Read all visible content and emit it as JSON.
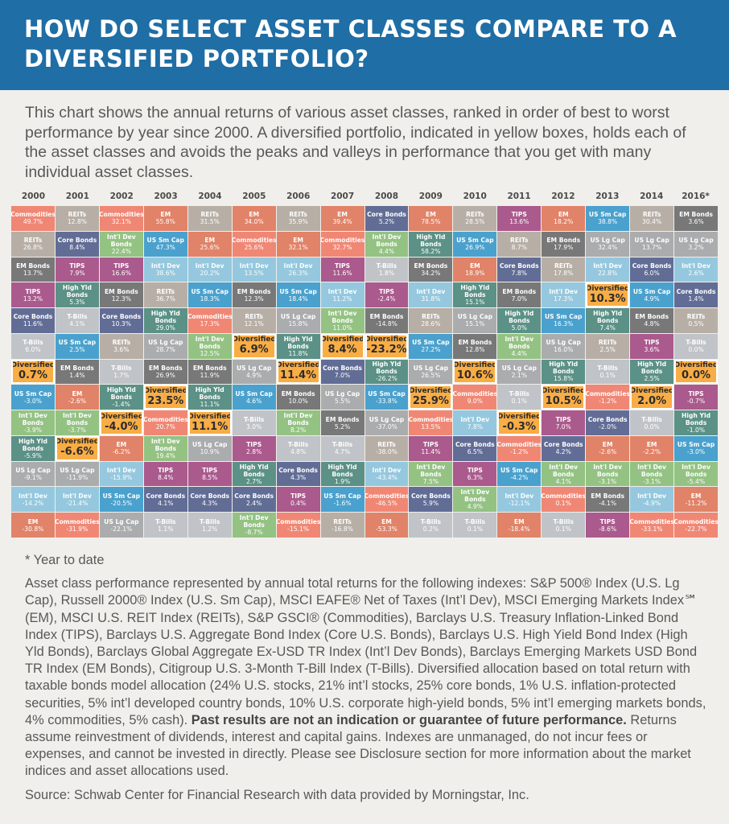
{
  "title": "HOW DO SELECT ASSET CLASSES COMPARE TO A DIVERSIFIED PORTFOLIO?",
  "intro": "This chart shows the annual returns of various asset classes, ranked in order of best to worst performance by year since 2000. A diversified portfolio, indicated in yellow boxes, holds each of the asset classes and avoids the peaks and valleys in performance that you get with many individual asset classes.",
  "colors": {
    "Commodities": "#f07f6a",
    "REITs": "#b3aaa1",
    "EM": "#e07a5d",
    "Core Bonds": "#56638f",
    "Int'l Dev Bonds": "#8dbf7b",
    "High Yld Bonds": "#4f8a7e",
    "US Sm Cap": "#3d9bcb",
    "US Lg Cap": "#a6a7a9",
    "Int'l Dev": "#8ec5dd",
    "EM Bonds": "#6e6e70",
    "TIPS": "#a54e86",
    "T-Bills": "#bdc1c6",
    "Diversified": "#f9ad45",
    "header": "#1f6ea5"
  },
  "chart_data": {
    "type": "table",
    "title": "",
    "note": "ranked best to worst per year; values are annual total returns in %",
    "years": [
      "2000",
      "2001",
      "2002",
      "2003",
      "2004",
      "2005",
      "2006",
      "2007",
      "2008",
      "2009",
      "2010",
      "2011",
      "2012",
      "2013",
      "2014",
      "2016*"
    ],
    "columns": [
      [
        [
          "Commodities",
          "49.7%"
        ],
        [
          "REITs",
          "26.8%"
        ],
        [
          "EM Bonds",
          "13.7%"
        ],
        [
          "TIPS",
          "13.2%"
        ],
        [
          "Core Bonds",
          "11.6%"
        ],
        [
          "T-Bills",
          "6.0%"
        ],
        [
          "Diversified",
          "0.7%"
        ],
        [
          "US Sm Cap",
          "-3.0%"
        ],
        [
          "Int'l Dev Bonds",
          "-3.9%"
        ],
        [
          "High Yld Bonds",
          "-5.9%"
        ],
        [
          "US Lg Cap",
          "-9.1%"
        ],
        [
          "Int'l Dev",
          "-14.2%"
        ],
        [
          "EM",
          "-30.8%"
        ]
      ],
      [
        [
          "REITs",
          "12.8%"
        ],
        [
          "Core Bonds",
          "8.4%"
        ],
        [
          "TIPS",
          "7.9%"
        ],
        [
          "High Yld Bonds",
          "5.3%"
        ],
        [
          "T-Bills",
          "4.1%"
        ],
        [
          "US Sm Cap",
          "2.5%"
        ],
        [
          "EM Bonds",
          "1.4%"
        ],
        [
          "EM",
          "-2.6%"
        ],
        [
          "Int'l Dev Bonds",
          "-3.7%"
        ],
        [
          "Diversified",
          "-6.6%"
        ],
        [
          "US Lg Cap",
          "-11.9%"
        ],
        [
          "Int'l Dev",
          "-21.4%"
        ],
        [
          "Commodities",
          "-31.9%"
        ]
      ],
      [
        [
          "Commodities",
          "32.1%"
        ],
        [
          "Int'l Dev Bonds",
          "22.4%"
        ],
        [
          "TIPS",
          "16.6%"
        ],
        [
          "EM Bonds",
          "12.3%"
        ],
        [
          "Core Bonds",
          "10.3%"
        ],
        [
          "REITs",
          "3.6%"
        ],
        [
          "T-Bills",
          "1.7%"
        ],
        [
          "High Yld Bonds",
          "-1.4%"
        ],
        [
          "Diversified",
          "-4.0%"
        ],
        [
          "EM",
          "-6.2%"
        ],
        [
          "Int'l Dev",
          "-15.9%"
        ],
        [
          "US Sm Cap",
          "-20.5%"
        ],
        [
          "US Lg Cap",
          "-22.1%"
        ]
      ],
      [
        [
          "EM",
          "55.8%"
        ],
        [
          "US Sm Cap",
          "47.3%"
        ],
        [
          "Int'l Dev",
          "38.6%"
        ],
        [
          "REITs",
          "36.7%"
        ],
        [
          "High Yld Bonds",
          "29.0%"
        ],
        [
          "US Lg Cap",
          "28.7%"
        ],
        [
          "EM Bonds",
          "26.9%"
        ],
        [
          "Diversified",
          "23.5%"
        ],
        [
          "Commodities",
          "20.7%"
        ],
        [
          "Int'l Dev Bonds",
          "19.4%"
        ],
        [
          "TIPS",
          "8.4%"
        ],
        [
          "Core Bonds",
          "4.1%"
        ],
        [
          "T-Bills",
          "1.1%"
        ]
      ],
      [
        [
          "REITs",
          "31.5%"
        ],
        [
          "EM",
          "25.6%"
        ],
        [
          "Int'l Dev",
          "20.2%"
        ],
        [
          "US Sm Cap",
          "18.3%"
        ],
        [
          "Commodities",
          "17.3%"
        ],
        [
          "Int'l Dev Bonds",
          "12.5%"
        ],
        [
          "EM Bonds",
          "11.9%"
        ],
        [
          "High Yld Bonds",
          "11.1%"
        ],
        [
          "Diversified",
          "11.1%"
        ],
        [
          "US Lg Cap",
          "10.9%"
        ],
        [
          "TIPS",
          "8.5%"
        ],
        [
          "Core Bonds",
          "4.3%"
        ],
        [
          "T-Bills",
          "1.2%"
        ]
      ],
      [
        [
          "EM",
          "34.0%"
        ],
        [
          "Commodities",
          "25.6%"
        ],
        [
          "Int'l Dev",
          "13.5%"
        ],
        [
          "EM Bonds",
          "12.3%"
        ],
        [
          "REITs",
          "12.1%"
        ],
        [
          "Diversified",
          "6.9%"
        ],
        [
          "US Lg Cap",
          "4.9%"
        ],
        [
          "US Sm Cap",
          "4.6%"
        ],
        [
          "T-Bills",
          "3.0%"
        ],
        [
          "TIPS",
          "2.8%"
        ],
        [
          "High Yld Bonds",
          "2.7%"
        ],
        [
          "Core Bonds",
          "2.4%"
        ],
        [
          "Int'l Dev Bonds",
          "-8.7%"
        ]
      ],
      [
        [
          "REITs",
          "35.9%"
        ],
        [
          "EM",
          "32.1%"
        ],
        [
          "Int'l Dev",
          "26.3%"
        ],
        [
          "US Sm Cap",
          "18.4%"
        ],
        [
          "US Lg Cap",
          "15.8%"
        ],
        [
          "High Yld Bonds",
          "11.8%"
        ],
        [
          "Diversified",
          "11.4%"
        ],
        [
          "EM Bonds",
          "10.0%"
        ],
        [
          "Int'l Dev Bonds",
          "8.2%"
        ],
        [
          "T-Bills",
          "4.8%"
        ],
        [
          "Core Bonds",
          "4.3%"
        ],
        [
          "TIPS",
          "0.4%"
        ],
        [
          "Commodities",
          "-15.1%"
        ]
      ],
      [
        [
          "EM",
          "39.4%"
        ],
        [
          "Commodities",
          "32.7%"
        ],
        [
          "TIPS",
          "11.6%"
        ],
        [
          "Int'l Dev",
          "11.2%"
        ],
        [
          "Int'l Dev Bonds",
          "11.0%"
        ],
        [
          "Diversified",
          "8.4%"
        ],
        [
          "Core Bonds",
          "7.0%"
        ],
        [
          "US Lg Cap",
          "5.5%"
        ],
        [
          "EM Bonds",
          "5.2%"
        ],
        [
          "T-Bills",
          "4.7%"
        ],
        [
          "High Yld Bonds",
          "1.9%"
        ],
        [
          "US Sm Cap",
          "-1.6%"
        ],
        [
          "REITs",
          "-16.8%"
        ]
      ],
      [
        [
          "Core Bonds",
          "5.2%"
        ],
        [
          "Int'l Dev Bonds",
          "4.4%"
        ],
        [
          "T-Bills",
          "1.8%"
        ],
        [
          "TIPS",
          "-2.4%"
        ],
        [
          "EM Bonds",
          "-14.8%"
        ],
        [
          "Diversified",
          "-23.2%"
        ],
        [
          "High Yld Bonds",
          "-26.2%"
        ],
        [
          "US Sm Cap",
          "-33.8%"
        ],
        [
          "US Lg Cap",
          "-37.0%"
        ],
        [
          "REITs",
          "-38.0%"
        ],
        [
          "Int'l Dev",
          "-43.4%"
        ],
        [
          "Commodities",
          "-46.5%"
        ],
        [
          "EM",
          "-53.3%"
        ]
      ],
      [
        [
          "EM",
          "78.5%"
        ],
        [
          "High Yld Bonds",
          "58.2%"
        ],
        [
          "EM Bonds",
          "34.2%"
        ],
        [
          "Int'l Dev",
          "31.8%"
        ],
        [
          "REITs",
          "28.6%"
        ],
        [
          "US Sm Cap",
          "27.2%"
        ],
        [
          "US Lg Cap",
          "26.5%"
        ],
        [
          "Diversified",
          "25.9%"
        ],
        [
          "Commodities",
          "13.5%"
        ],
        [
          "TIPS",
          "11.4%"
        ],
        [
          "Int'l Dev Bonds",
          "7.5%"
        ],
        [
          "Core Bonds",
          "5.9%"
        ],
        [
          "T-Bills",
          "0.2%"
        ]
      ],
      [
        [
          "REITs",
          "28.5%"
        ],
        [
          "US Sm Cap",
          "26.9%"
        ],
        [
          "EM",
          "18.9%"
        ],
        [
          "High Yld Bonds",
          "15.1%"
        ],
        [
          "US Lg Cap",
          "15.1%"
        ],
        [
          "EM Bonds",
          "12.8%"
        ],
        [
          "Diversified",
          "10.6%"
        ],
        [
          "Commodities",
          "9.0%"
        ],
        [
          "Int'l Dev",
          "7.8%"
        ],
        [
          "Core Bonds",
          "6.5%"
        ],
        [
          "TIPS",
          "6.3%"
        ],
        [
          "Int'l Dev Bonds",
          "4.9%"
        ],
        [
          "T-Bills",
          "0.1%"
        ]
      ],
      [
        [
          "TIPS",
          "13.6%"
        ],
        [
          "REITs",
          "8.7%"
        ],
        [
          "Core Bonds",
          "7.8%"
        ],
        [
          "EM Bonds",
          "7.0%"
        ],
        [
          "High Yld Bonds",
          "5.0%"
        ],
        [
          "Int'l Dev Bonds",
          "4.4%"
        ],
        [
          "US Lg Cap",
          "2.1%"
        ],
        [
          "T-Bills",
          "0.1%"
        ],
        [
          "Diversified",
          "-0.3%"
        ],
        [
          "Commodities",
          "-1.2%"
        ],
        [
          "US Sm Cap",
          "-4.2%"
        ],
        [
          "Int'l Dev",
          "-12.1%"
        ],
        [
          "EM",
          "-18.4%"
        ]
      ],
      [
        [
          "EM",
          "18.2%"
        ],
        [
          "EM Bonds",
          "17.9%"
        ],
        [
          "REITs",
          "17.8%"
        ],
        [
          "Int'l Dev",
          "17.3%"
        ],
        [
          "US Sm Cap",
          "16.3%"
        ],
        [
          "US Lg Cap",
          "16.0%"
        ],
        [
          "High Yld Bonds",
          "15.8%"
        ],
        [
          "Diversified",
          "10.5%"
        ],
        [
          "TIPS",
          "7.0%"
        ],
        [
          "Core Bonds",
          "4.2%"
        ],
        [
          "Int'l Dev Bonds",
          "4.1%"
        ],
        [
          "Commodities",
          "0.1%"
        ],
        [
          "T-Bills",
          "0.1%"
        ]
      ],
      [
        [
          "US Sm Cap",
          "38.8%"
        ],
        [
          "US Lg Cap",
          "32.4%"
        ],
        [
          "Int'l Dev",
          "22.8%"
        ],
        [
          "Diversified",
          "10.3%"
        ],
        [
          "High Yld Bonds",
          "7.4%"
        ],
        [
          "REITs",
          "2.5%"
        ],
        [
          "T-Bills",
          "0.1%"
        ],
        [
          "Commodities",
          "-1.2%"
        ],
        [
          "Core Bonds",
          "-2.0%"
        ],
        [
          "EM",
          "-2.6%"
        ],
        [
          "Int'l Dev Bonds",
          "-3.1%"
        ],
        [
          "EM Bonds",
          "-4.1%"
        ],
        [
          "TIPS",
          "-8.6%"
        ]
      ],
      [
        [
          "REITs",
          "30.4%"
        ],
        [
          "US Lg Cap",
          "13.7%"
        ],
        [
          "Core Bonds",
          "6.0%"
        ],
        [
          "US Sm Cap",
          "4.9%"
        ],
        [
          "EM Bonds",
          "4.8%"
        ],
        [
          "TIPS",
          "3.6%"
        ],
        [
          "High Yld Bonds",
          "2.5%"
        ],
        [
          "Diversified",
          "2.0%"
        ],
        [
          "T-Bills",
          "0.0%"
        ],
        [
          "EM",
          "-2.2%"
        ],
        [
          "Int'l Dev Bonds",
          "-3.1%"
        ],
        [
          "Int'l Dev",
          "-4.9%"
        ],
        [
          "Commodities",
          "-33.1%"
        ]
      ],
      [
        [
          "EM Bonds",
          "3.6%"
        ],
        [
          "US Lg Cap",
          "3.2%"
        ],
        [
          "Int'l Dev",
          "2.6%"
        ],
        [
          "Core Bonds",
          "1.4%"
        ],
        [
          "REITs",
          "0.5%"
        ],
        [
          "T-Bills",
          "0.0%"
        ],
        [
          "Diversified",
          "0.0%"
        ],
        [
          "TIPS",
          "-0.7%"
        ],
        [
          "High Yld Bonds",
          "-1.0%"
        ],
        [
          "US Sm Cap",
          "-3.0%"
        ],
        [
          "Int'l Dev Bonds",
          "-5.4%"
        ],
        [
          "EM",
          "-11.2%"
        ],
        [
          "Commodities",
          "-22.7%"
        ]
      ]
    ]
  },
  "footnotes": {
    "ytd": "* Year to date",
    "body": "Asset class performance represented by annual total returns for the following indexes: S&P 500® Index (U.S. Lg Cap), Russell 2000® Index (U.S. Sm Cap), MSCI EAFE® Net of Taxes (Int’l Dev), MSCI Emerging Markets Index℠ (EM), MSCI U.S. REIT Index (REITs), S&P GSCI® (Commodities), Barclays U.S. Treasury Inflation-Linked Bond Index (TIPS), Barclays U.S. Aggregate Bond Index (Core U.S. Bonds), Barclays U.S. High Yield Bond Index (High Yld Bonds), Barclays Global Aggregate Ex-USD TR Index (Int’l Dev Bonds), Barclays Emerging Markets USD Bond TR Index (EM Bonds), Citigroup U.S. 3-Month T-Bill Index (T-Bills). Diversified allocation based on total return with taxable bonds model allocation (24% U.S. stocks, 21% int’l stocks, 25% core bonds, 1% U.S. inflation-protected securities, 5% int’l developed country bonds, 10% U.S. corporate high-yield bonds, 5% int’l emerging markets bonds, 4% commodities, 5% cash).",
    "bold": "Past results are not an indication or guarantee of future performance.",
    "after": "Returns assume reinvestment of dividends, interest and capital gains. Indexes are unmanaged, do not incur fees or expenses, and cannot be invested in directly. Please see Disclosure section for more information about the market indices and asset allocations used.",
    "source": "Source: Schwab Center for Financial Research with data provided by Morningstar, Inc."
  }
}
